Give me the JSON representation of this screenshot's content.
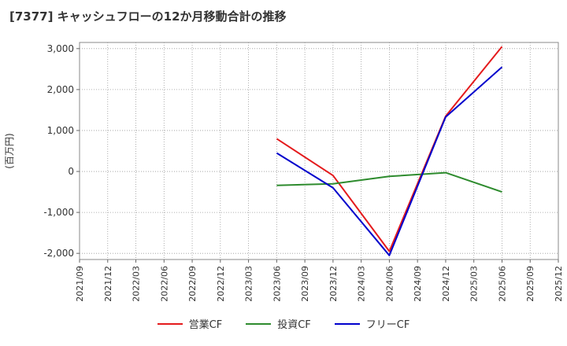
{
  "chart_data": {
    "type": "line",
    "title": "[7377]  キャッシュフローの12か月移動合計の推移",
    "ylabel": "(百万円)",
    "xlabel": "",
    "ylim": [
      -2150,
      3150
    ],
    "yticks": [
      -2000,
      -1000,
      0,
      1000,
      2000,
      3000
    ],
    "ytick_labels": [
      "-2,000",
      "-1,000",
      "0",
      "1,000",
      "2,000",
      "3,000"
    ],
    "categories": [
      "2021/09",
      "2021/12",
      "2022/03",
      "2022/06",
      "2022/09",
      "2022/12",
      "2023/03",
      "2023/06",
      "2023/09",
      "2023/12",
      "2024/03",
      "2024/06",
      "2024/09",
      "2024/12",
      "2025/03",
      "2025/06",
      "2025/09",
      "2025/12"
    ],
    "grid": true,
    "legend_position": "bottom",
    "series": [
      {
        "name": "営業CF",
        "color": "#e41a1c",
        "values": [
          null,
          null,
          null,
          null,
          null,
          null,
          null,
          800,
          null,
          -100,
          null,
          -1950,
          null,
          1350,
          null,
          3050,
          null,
          null
        ]
      },
      {
        "name": "投資CF",
        "color": "#2e8b2e",
        "values": [
          null,
          null,
          null,
          null,
          null,
          null,
          null,
          -340,
          null,
          -300,
          null,
          -120,
          null,
          -30,
          null,
          -500,
          null,
          null
        ]
      },
      {
        "name": "フリーCF",
        "color": "#0000cc",
        "values": [
          null,
          null,
          null,
          null,
          null,
          null,
          null,
          450,
          null,
          -400,
          null,
          -2050,
          null,
          1330,
          null,
          2550,
          null,
          null
        ]
      }
    ]
  }
}
